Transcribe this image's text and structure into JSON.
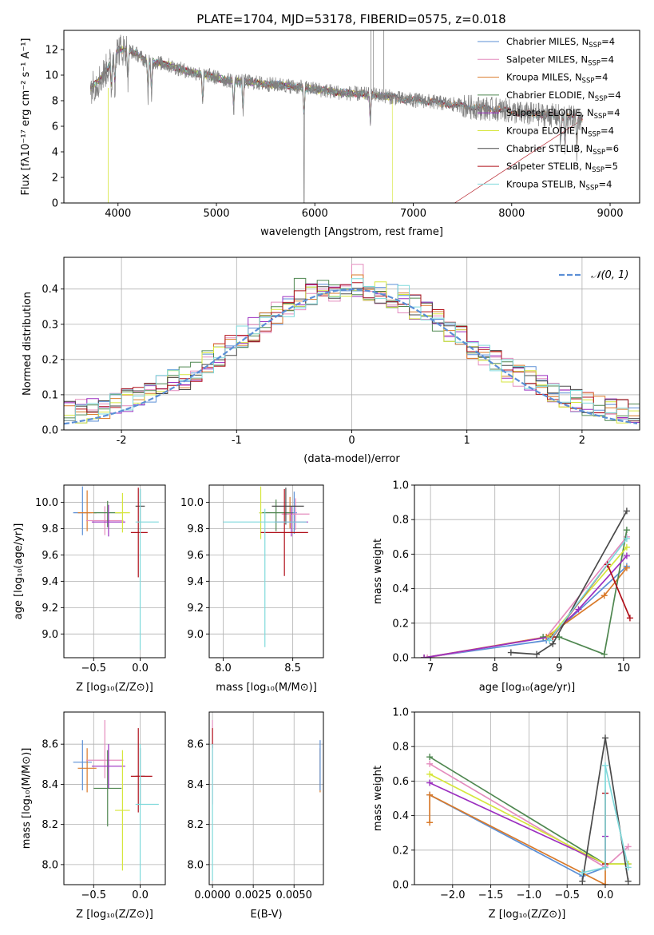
{
  "figure": {
    "title": "PLATE=1704, MJD=53178, FIBERID=0575, z=0.018"
  },
  "colors": {
    "Chabrier MILES": "#5b8fd6",
    "Salpeter MILES": "#e48cbe",
    "Kroupa MILES": "#d97a2a",
    "Chabrier ELODIE": "#4f8750",
    "Salpeter ELODIE": "#9b2fc0",
    "Kroupa ELODIE": "#d6e63c",
    "Chabrier STELIB": "#4a4a4a",
    "Salpeter STELIB": "#b0101a",
    "Kroupa STELIB": "#7fd9db",
    "data": "#808080",
    "normal": "#5b8fd6"
  },
  "chart_data": [
    {
      "id": "spectrum",
      "type": "line",
      "xlabel": "wavelength [Angstrom, rest frame]",
      "ylabel": "Flux [fλ10⁻¹⁷ erg cm⁻² s⁻¹ A⁻¹]",
      "xlim": [
        3450,
        9300
      ],
      "ylim": [
        0,
        13.5
      ],
      "xticks": [
        4000,
        5000,
        6000,
        7000,
        8000,
        9000
      ],
      "yticks": [
        0,
        2,
        4,
        6,
        8,
        10,
        12
      ],
      "grid": false,
      "legend_position": "top-right",
      "legend": [
        {
          "text": "Chabrier MILES, N",
          "sub": "SSP",
          "suffix": "=4"
        },
        {
          "text": "Salpeter MILES, N",
          "sub": "SSP",
          "suffix": "=4"
        },
        {
          "text": "Kroupa MILES, N",
          "sub": "SSP",
          "suffix": "=4"
        },
        {
          "text": "Chabrier ELODIE, N",
          "sub": "SSP",
          "suffix": "=4"
        },
        {
          "text": "Salpeter ELODIE, N",
          "sub": "SSP",
          "suffix": "=4"
        },
        {
          "text": "Kroupa ELODIE, N",
          "sub": "SSP",
          "suffix": "=4"
        },
        {
          "text": "Chabrier STELIB, N",
          "sub": "SSP",
          "suffix": "=6"
        },
        {
          "text": "Salpeter STELIB, N",
          "sub": "SSP",
          "suffix": "=5"
        },
        {
          "text": "Kroupa STELIB, N",
          "sub": "SSP",
          "suffix": "=4"
        }
      ],
      "continuum": [
        [
          3720,
          9.0
        ],
        [
          3800,
          9.5
        ],
        [
          3900,
          10.6
        ],
        [
          4000,
          12.0
        ],
        [
          4100,
          12.0
        ],
        [
          4200,
          11.6
        ],
        [
          4300,
          11.0
        ],
        [
          4400,
          11.0
        ],
        [
          4500,
          10.8
        ],
        [
          4700,
          10.3
        ],
        [
          4900,
          10.0
        ],
        [
          5100,
          9.6
        ],
        [
          5300,
          9.5
        ],
        [
          5500,
          9.3
        ],
        [
          5700,
          9.2
        ],
        [
          5900,
          9.0
        ],
        [
          6100,
          8.8
        ],
        [
          6300,
          8.6
        ],
        [
          6500,
          8.5
        ],
        [
          6700,
          8.4
        ],
        [
          6900,
          8.1
        ],
        [
          7100,
          8.0
        ],
        [
          7300,
          7.8
        ],
        [
          7500,
          7.6
        ],
        [
          7700,
          7.4
        ],
        [
          7900,
          7.3
        ],
        [
          8100,
          7.0
        ],
        [
          8300,
          6.9
        ],
        [
          8500,
          6.8
        ],
        [
          8700,
          6.6
        ]
      ],
      "notes": "Approximate continuum levels of the observed spectrum read from the plot; individual SSP model curves overlap the data closely."
    },
    {
      "id": "residuals",
      "type": "line",
      "xlabel": "(data-model)/error",
      "ylabel": "Normed distribution",
      "xlim": [
        -2.5,
        2.5
      ],
      "ylim": [
        0,
        0.49
      ],
      "xticks": [
        -2,
        -1,
        0,
        1,
        2
      ],
      "yticks": [
        0.0,
        0.1,
        0.2,
        0.3,
        0.4
      ],
      "grid": true,
      "legend_position": "top-right",
      "legend": [
        "𝒩(0, 1)"
      ],
      "histogram_bin_width": 0.1,
      "histogram_series": [
        {
          "model": "Salpeter MILES",
          "peak_x": 0.05,
          "peak_y": 0.47
        },
        {
          "model": "Kroupa MILES",
          "peak_x": 0.05,
          "peak_y": 0.44
        },
        {
          "model": "Chabrier ELODIE",
          "peak_x": -0.45,
          "peak_y": 0.43
        },
        {
          "model": "Kroupa STELIB",
          "peak_x": 0.45,
          "peak_y": 0.41
        },
        {
          "model": "Chabrier STELIB",
          "peak_x": 0.65,
          "peak_y": 0.36
        }
      ]
    },
    {
      "id": "age-vs-Z",
      "type": "scatter",
      "xlabel": "Z [log₁₀(Z/Z⊙)]",
      "ylabel": "age  [log₁₀(age/yr)]",
      "xlim": [
        -0.82,
        0.27
      ],
      "ylim": [
        8.82,
        10.13
      ],
      "xticks": [
        -0.5,
        0.0
      ],
      "xtick_labels": [
        "−0.5",
        "0.0"
      ],
      "yticks": [
        9.0,
        9.2,
        9.4,
        9.6,
        9.8,
        10.0
      ],
      "grid": true,
      "points": [
        {
          "model": "Chabrier MILES",
          "x": -0.62,
          "y": 9.92,
          "xerr": [
            0.1,
            0.1
          ],
          "yerr": [
            0.17,
            0.2
          ]
        },
        {
          "model": "Kroupa MILES",
          "x": -0.57,
          "y": 9.92,
          "xerr": [
            0.1,
            0.1
          ],
          "yerr": [
            0.14,
            0.17
          ]
        },
        {
          "model": "Salpeter MILES",
          "x": -0.38,
          "y": 9.86,
          "xerr": [
            0.2,
            0.2
          ],
          "yerr": [
            0.11,
            0.11
          ]
        },
        {
          "model": "Chabrier ELODIE",
          "x": -0.35,
          "y": 9.92,
          "xerr": [
            0.15,
            0.15
          ],
          "yerr": [
            0.11,
            0.09
          ]
        },
        {
          "model": "Salpeter ELODIE",
          "x": -0.34,
          "y": 9.85,
          "xerr": [
            0.18,
            0.18
          ],
          "yerr": [
            0.11,
            0.13
          ]
        },
        {
          "model": "Kroupa ELODIE",
          "x": -0.19,
          "y": 9.92,
          "xerr": [
            0.08,
            0.08
          ],
          "yerr": [
            0.15,
            0.15
          ]
        },
        {
          "model": "Chabrier STELIB",
          "x": 0.0,
          "y": 9.97,
          "xerr": [
            0.05,
            0.05
          ],
          "yerr": [
            0.18,
            0.13
          ]
        },
        {
          "model": "Salpeter STELIB",
          "x": -0.02,
          "y": 9.77,
          "xerr": [
            0.08,
            0.1
          ],
          "yerr": [
            0.34,
            0.34
          ]
        },
        {
          "model": "Kroupa STELIB",
          "x": 0.0,
          "y": 9.85,
          "xerr": [
            0.05,
            0.2
          ],
          "yerr": [
            0.97,
            0.25
          ]
        }
      ]
    },
    {
      "id": "age-vs-mass",
      "type": "scatter",
      "xlabel": "mass [log₁₀(M/M⊙)]",
      "ylabel": "",
      "xlim": [
        7.9,
        8.72
      ],
      "ylim": [
        8.82,
        10.13
      ],
      "xticks": [
        8.0,
        8.5
      ],
      "yticks": [
        9.0,
        9.2,
        9.4,
        9.6,
        9.8,
        10.0
      ],
      "grid": true,
      "points": [
        {
          "model": "Chabrier MILES",
          "x": 8.51,
          "y": 9.92,
          "xerr": [
            0.02,
            0.02
          ],
          "yerr": [
            0.16,
            0.16
          ]
        },
        {
          "model": "Kroupa MILES",
          "x": 8.48,
          "y": 9.92,
          "xerr": [
            0.02,
            0.02
          ],
          "yerr": [
            0.12,
            0.12
          ]
        },
        {
          "model": "Salpeter MILES",
          "x": 8.52,
          "y": 9.91,
          "xerr": [
            0.1,
            0.1
          ],
          "yerr": [
            0.12,
            0.12
          ]
        },
        {
          "model": "Chabrier ELODIE",
          "x": 8.38,
          "y": 9.92,
          "xerr": [
            0.12,
            0.12
          ],
          "yerr": [
            0.14,
            0.1
          ]
        },
        {
          "model": "Salpeter ELODIE",
          "x": 8.49,
          "y": 9.85,
          "xerr": [
            0.12,
            0.12
          ],
          "yerr": [
            0.11,
            0.12
          ]
        },
        {
          "model": "Kroupa ELODIE",
          "x": 8.27,
          "y": 9.92,
          "xerr": [
            0.01,
            0.01
          ],
          "yerr": [
            0.2,
            0.2
          ]
        },
        {
          "model": "Chabrier STELIB",
          "x": 8.45,
          "y": 9.97,
          "xerr": [
            0.1,
            0.13
          ],
          "yerr": [
            0.14,
            0.14
          ]
        },
        {
          "model": "Salpeter STELIB",
          "x": 8.44,
          "y": 9.77,
          "xerr": [
            0.17,
            0.17
          ],
          "yerr": [
            0.33,
            0.33
          ]
        },
        {
          "model": "Kroupa STELIB",
          "x": 8.3,
          "y": 9.85,
          "xerr": [
            0.3,
            0.3
          ],
          "yerr": [
            0.95,
            0.1
          ]
        }
      ]
    },
    {
      "id": "weight-vs-age",
      "type": "line",
      "xlabel": "age  [log₁₀(age/yr)]",
      "ylabel": "mass weight",
      "xlim": [
        6.75,
        10.25
      ],
      "ylim": [
        0,
        1.0
      ],
      "xticks": [
        7,
        8,
        9,
        10
      ],
      "yticks": [
        0.0,
        0.2,
        0.4,
        0.6,
        0.8,
        1.0
      ],
      "grid": true,
      "series": [
        {
          "model": "Chabrier MILES",
          "x": [
            6.9,
            8.8,
            10.05
          ],
          "y": [
            0.0,
            0.1,
            0.53
          ]
        },
        {
          "model": "Salpeter MILES",
          "x": [
            6.95,
            8.8,
            10.05
          ],
          "y": [
            0.0,
            0.12,
            0.7
          ]
        },
        {
          "model": "Kroupa MILES",
          "x": [
            6.9,
            8.8,
            9.7,
            10.05
          ],
          "y": [
            0.0,
            0.12,
            0.36,
            0.52
          ]
        },
        {
          "model": "Chabrier ELODIE",
          "x": [
            8.75,
            9.0,
            9.7,
            10.05
          ],
          "y": [
            0.12,
            0.12,
            0.02,
            0.74
          ]
        },
        {
          "model": "Salpeter ELODIE",
          "x": [
            6.9,
            8.85,
            9.3,
            10.05
          ],
          "y": [
            0.0,
            0.12,
            0.28,
            0.59
          ]
        },
        {
          "model": "Kroupa ELODIE",
          "x": [
            8.85,
            10.05
          ],
          "y": [
            0.12,
            0.64
          ]
        },
        {
          "model": "Chabrier STELIB",
          "x": [
            8.25,
            8.65,
            8.9,
            10.05
          ],
          "y": [
            0.03,
            0.02,
            0.08,
            0.85
          ]
        },
        {
          "model": "Salpeter STELIB",
          "x": [
            8.9,
            9.75,
            10.1
          ],
          "y": [
            0.12,
            0.54,
            0.23
          ]
        },
        {
          "model": "Kroupa STELIB",
          "x": [
            8.85,
            10.05
          ],
          "y": [
            0.1,
            0.69
          ]
        }
      ]
    },
    {
      "id": "mass-vs-Z",
      "type": "scatter",
      "xlabel": "Z [log₁₀(Z/Z⊙)]",
      "ylabel": "mass [log₁₀(M/M⊙)]",
      "xlim": [
        -0.82,
        0.27
      ],
      "ylim": [
        7.9,
        8.76
      ],
      "xticks": [
        -0.5,
        0.0
      ],
      "xtick_labels": [
        "−0.5",
        "0.0"
      ],
      "yticks": [
        8.0,
        8.2,
        8.4,
        8.6
      ],
      "grid": true,
      "points": [
        {
          "model": "Chabrier MILES",
          "x": -0.62,
          "y": 8.51,
          "xerr": [
            0.1,
            0.1
          ],
          "yerr": [
            0.14,
            0.11
          ]
        },
        {
          "model": "Kroupa MILES",
          "x": -0.57,
          "y": 8.48,
          "xerr": [
            0.1,
            0.1
          ],
          "yerr": [
            0.12,
            0.1
          ]
        },
        {
          "model": "Salpeter MILES",
          "x": -0.38,
          "y": 8.52,
          "xerr": [
            0.2,
            0.2
          ],
          "yerr": [
            0.09,
            0.2
          ]
        },
        {
          "model": "Chabrier ELODIE",
          "x": -0.35,
          "y": 8.38,
          "xerr": [
            0.15,
            0.15
          ],
          "yerr": [
            0.19,
            0.19
          ]
        },
        {
          "model": "Salpeter ELODIE",
          "x": -0.34,
          "y": 8.49,
          "xerr": [
            0.18,
            0.18
          ],
          "yerr": [
            0.11,
            0.11
          ]
        },
        {
          "model": "Kroupa ELODIE",
          "x": -0.19,
          "y": 8.27,
          "xerr": [
            0.08,
            0.08
          ],
          "yerr": [
            0.3,
            0.3
          ]
        },
        {
          "model": "Chabrier STELIB",
          "x": 0.0,
          "y": 8.44,
          "xerr": [
            0.05,
            0.05
          ],
          "yerr": [
            0.14,
            0.14
          ]
        },
        {
          "model": "Salpeter STELIB",
          "x": -0.02,
          "y": 8.44,
          "xerr": [
            0.08,
            0.15
          ],
          "yerr": [
            0.18,
            0.24
          ]
        },
        {
          "model": "Kroupa STELIB",
          "x": 0.0,
          "y": 8.3,
          "xerr": [
            0.05,
            0.2
          ],
          "yerr": [
            0.38,
            0.3
          ]
        }
      ]
    },
    {
      "id": "mass-vs-ebv",
      "type": "scatter",
      "xlabel": "E(B-V)",
      "ylabel": "",
      "xlim": [
        -0.0002,
        0.0068
      ],
      "ylim": [
        7.9,
        8.76
      ],
      "xticks": [
        0.0,
        0.0025,
        0.005
      ],
      "xtick_labels": [
        "0.0000",
        "0.0025",
        "0.0050"
      ],
      "yticks": [
        8.0,
        8.2,
        8.4,
        8.6
      ],
      "grid": true,
      "points": [
        {
          "model": "Salpeter MILES",
          "x": 0.0,
          "y": 8.6,
          "xerr": [
            0.0,
            0.0
          ],
          "yerr": [
            0.3,
            0.12
          ]
        },
        {
          "model": "Salpeter STELIB",
          "x": 0.0,
          "y": 8.63,
          "xerr": [
            0.0,
            0.0
          ],
          "yerr": [
            0.05,
            0.05
          ]
        },
        {
          "model": "Kroupa STELIB",
          "x": 0.0,
          "y": 8.3,
          "xerr": [
            0.0,
            0.0
          ],
          "yerr": [
            0.38,
            0.3
          ]
        },
        {
          "model": "Kroupa MILES",
          "x": 0.0066,
          "y": 8.48,
          "xerr": [
            0.0,
            0.0
          ],
          "yerr": [
            0.12,
            0.1
          ]
        },
        {
          "model": "Chabrier MILES",
          "x": 0.0066,
          "y": 8.51,
          "xerr": [
            0.0,
            0.0
          ],
          "yerr": [
            0.14,
            0.11
          ]
        }
      ]
    },
    {
      "id": "weight-vs-Z",
      "type": "line",
      "xlabel": "Z [log₁₀(Z/Z⊙)]",
      "ylabel": "mass weight",
      "xlim": [
        -2.5,
        0.45
      ],
      "ylim": [
        0,
        1.0
      ],
      "xticks": [
        -2.0,
        -1.5,
        -1.0,
        -0.5,
        0.0
      ],
      "xtick_labels": [
        "−2.0",
        "−1.5",
        "−1.0",
        "−0.5",
        "0.0"
      ],
      "yticks": [
        0.0,
        0.2,
        0.4,
        0.6,
        0.8,
        1.0
      ],
      "grid": true,
      "series": [
        {
          "model": "Chabrier MILES",
          "x": [
            -2.3,
            -0.3,
            0.0
          ],
          "y": [
            0.52,
            0.05,
            0.1
          ]
        },
        {
          "model": "Salpeter MILES",
          "x": [
            -2.3,
            0.0,
            0.3
          ],
          "y": [
            0.7,
            0.1,
            0.22
          ]
        },
        {
          "model": "Kroupa MILES",
          "x": [
            -2.3,
            -2.3,
            0.0,
            0.0
          ],
          "y": [
            0.36,
            0.52,
            0.0,
            0.12
          ]
        },
        {
          "model": "Chabrier ELODIE",
          "x": [
            -2.3,
            0.0,
            0.3
          ],
          "y": [
            0.74,
            0.12,
            0.12
          ]
        },
        {
          "model": "Salpeter ELODIE",
          "x": [
            -2.3,
            0.0,
            0.0
          ],
          "y": [
            0.59,
            0.12,
            0.28
          ]
        },
        {
          "model": "Kroupa ELODIE",
          "x": [
            -2.3,
            0.0,
            0.3
          ],
          "y": [
            0.64,
            0.12,
            0.12
          ]
        },
        {
          "model": "Chabrier STELIB",
          "x": [
            -0.3,
            0.0,
            0.3
          ],
          "y": [
            0.02,
            0.85,
            0.02
          ]
        },
        {
          "model": "Salpeter STELIB",
          "x": [
            0.0,
            0.0
          ],
          "y": [
            0.53,
            0.12
          ]
        },
        {
          "model": "Kroupa STELIB",
          "x": [
            -0.3,
            0.0,
            0.0,
            0.3
          ],
          "y": [
            0.07,
            0.1,
            0.69,
            0.1
          ]
        }
      ]
    }
  ]
}
